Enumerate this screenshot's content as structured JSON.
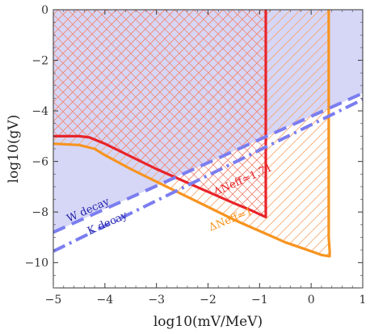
{
  "chart_data": {
    "type": "line",
    "title": "",
    "xlabel": "log10(mV/MeV)",
    "ylabel": "log10(gV)",
    "xlim": [
      -5,
      1
    ],
    "ylim": [
      -11,
      0
    ],
    "x_ticks": [
      -5,
      -4,
      -3,
      -2,
      -1,
      0,
      1
    ],
    "y_ticks": [
      0,
      -2,
      -4,
      -6,
      -8,
      -10
    ],
    "x_tick_labels": [
      "−5",
      "−4",
      "−3",
      "−2",
      "−1",
      "0",
      "1"
    ],
    "y_tick_labels": [
      "0",
      "−2",
      "−4",
      "−6",
      "−8",
      "−10"
    ],
    "grid": false,
    "colors": {
      "excluded_fill": "#d6d6f7",
      "red": "#e8242a",
      "orange": "#f79420",
      "blue_line": "#7b7ef0",
      "hatch_red": "#f08a7a",
      "hatch_orange": "#f7a56a"
    },
    "series": [
      {
        "name": "ΔNeff≃1.71",
        "kind": "hatched-region-boundary",
        "style": "solid",
        "points": [
          [
            -5,
            -5.0
          ],
          [
            -4.5,
            -5.0
          ],
          [
            -4.3,
            -5.05
          ],
          [
            -4.0,
            -5.3
          ],
          [
            -3.5,
            -5.8
          ],
          [
            -3.0,
            -6.3
          ],
          [
            -2.5,
            -6.75
          ],
          [
            -2.0,
            -7.2
          ],
          [
            -1.5,
            -7.65
          ],
          [
            -1.2,
            -7.9
          ],
          [
            -0.88,
            -8.2
          ],
          [
            -0.88,
            0
          ]
        ]
      },
      {
        "name": "ΔNeff≃1",
        "kind": "hatched-region-boundary",
        "style": "solid",
        "points": [
          [
            -5,
            -5.3
          ],
          [
            -4.5,
            -5.35
          ],
          [
            -4.2,
            -5.5
          ],
          [
            -4.0,
            -5.75
          ],
          [
            -3.5,
            -6.3
          ],
          [
            -3.0,
            -6.8
          ],
          [
            -2.5,
            -7.3
          ],
          [
            -2.0,
            -7.8
          ],
          [
            -1.5,
            -8.3
          ],
          [
            -1.0,
            -8.75
          ],
          [
            -0.5,
            -9.2
          ],
          [
            0.0,
            -9.55
          ],
          [
            0.2,
            -9.7
          ],
          [
            0.36,
            -9.75
          ],
          [
            0.36,
            -9.55
          ],
          [
            0.34,
            -9.0
          ],
          [
            0.34,
            0
          ]
        ]
      },
      {
        "name": "W decay",
        "kind": "line",
        "style": "dashed",
        "points": [
          [
            -5,
            -8.8
          ],
          [
            1,
            -3.3
          ]
        ]
      },
      {
        "name": "K decay",
        "kind": "line",
        "style": "dash-dot",
        "points": [
          [
            -5,
            -9.55
          ],
          [
            1,
            -3.55
          ]
        ]
      }
    ],
    "excluded_region": {
      "name": "shaded region",
      "lower_boundary": [
        [
          -5,
          -8.8
        ],
        [
          1,
          -3.3
        ]
      ]
    },
    "annotations": [
      {
        "text": "W decay",
        "x": -4.7,
        "y": -8.4,
        "color": "#2222aa",
        "angle_deg": -24
      },
      {
        "text": "K decay",
        "x": -4.3,
        "y": -8.9,
        "color": "#2222aa",
        "angle_deg": -24
      },
      {
        "text": "ΔNeff≃1.71",
        "x": -1.85,
        "y": -7.35,
        "color": "#e8242a",
        "angle_deg": -24
      },
      {
        "text": "ΔNeff≃1",
        "x": -1.95,
        "y": -8.75,
        "color": "#f79420",
        "angle_deg": -22
      }
    ]
  }
}
